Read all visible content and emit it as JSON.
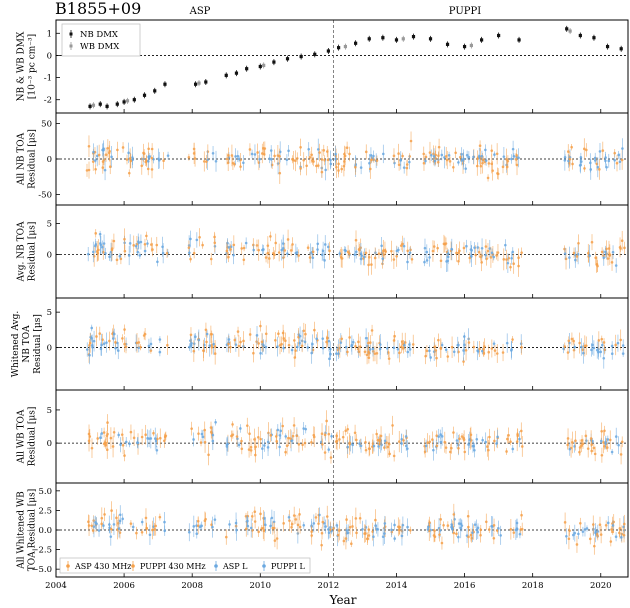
{
  "chart_data": {
    "type": "scatter",
    "title": "B1855+09",
    "receivers_top": [
      "ASP",
      "PUPPI"
    ],
    "xlabel": "Year",
    "xlim": [
      2004,
      2020.8
    ],
    "x_ticks": [
      2004,
      2006,
      2008,
      2010,
      2012,
      2014,
      2016,
      2018,
      2020
    ],
    "vline_x": 2012.15,
    "panels": [
      {
        "name": "dmx",
        "ylabel": [
          "NB & WB DMX",
          "[10⁻³ pc cm⁻³]"
        ],
        "ylim": [
          -2.6,
          1.6
        ],
        "yticks": [
          -2,
          -1,
          0,
          1
        ],
        "legend": [
          "NB DMX",
          "WB DMX"
        ],
        "series": [
          {
            "name": "NB DMX",
            "x": [
              2005.0,
              2005.3,
              2005.5,
              2005.8,
              2006.0,
              2006.3,
              2006.6,
              2006.9,
              2007.2,
              2008.1,
              2008.4,
              2009.0,
              2009.3,
              2009.6,
              2010.0,
              2010.4,
              2010.8,
              2011.2,
              2011.6,
              2012.0,
              2012.3,
              2012.8,
              2013.2,
              2013.6,
              2014.0,
              2014.5,
              2015.0,
              2015.5,
              2016.0,
              2016.5,
              2017.0,
              2017.6,
              2019.0,
              2019.4,
              2019.8,
              2020.2,
              2020.6
            ],
            "y": [
              -2.3,
              -2.2,
              -2.3,
              -2.2,
              -2.1,
              -2.0,
              -1.8,
              -1.6,
              -1.3,
              -1.3,
              -1.2,
              -0.9,
              -0.8,
              -0.6,
              -0.5,
              -0.3,
              -0.15,
              -0.05,
              0.05,
              0.2,
              0.35,
              0.55,
              0.75,
              0.8,
              0.7,
              0.85,
              0.75,
              0.5,
              0.4,
              0.7,
              0.9,
              0.7,
              1.2,
              0.9,
              0.8,
              0.4,
              0.3
            ]
          },
          {
            "name": "WB DMX",
            "x": [
              2005.1,
              2006.1,
              2008.2,
              2010.1,
              2012.5,
              2014.2,
              2016.2,
              2019.1
            ],
            "y": [
              -2.25,
              -2.05,
              -1.25,
              -0.45,
              0.4,
              0.75,
              0.45,
              1.1
            ]
          }
        ]
      },
      {
        "name": "all-nb-toa",
        "ylabel": [
          "All NB TOA",
          "Residual [μs]"
        ],
        "ylim": [
          -65,
          65
        ],
        "yticks": [
          -50,
          0,
          50
        ],
        "scatter_amplitude": 18
      },
      {
        "name": "avg-nb-toa",
        "ylabel": [
          "Avg. NB TOA",
          "Residual [μs]"
        ],
        "ylim": [
          -7,
          8
        ],
        "yticks": [
          0,
          5
        ]
      },
      {
        "name": "whitened-avg-nb-toa",
        "ylabel": [
          "Whitened Avg.",
          "NB TOA",
          "Residual [μs]"
        ],
        "ylim": [
          -6,
          7
        ],
        "yticks": [
          0,
          5
        ]
      },
      {
        "name": "all-wb-toa",
        "ylabel": [
          "All WB TOA",
          "Residual [μs]"
        ],
        "ylim": [
          -6,
          8
        ],
        "yticks": [
          0,
          5
        ]
      },
      {
        "name": "all-whitened-wb-toa",
        "ylabel": [
          "All Whitened WB",
          "TOA Residual [μs]"
        ],
        "ylim": [
          -6,
          6
        ],
        "yticks": [
          -5.0,
          -2.5,
          0.0,
          2.5,
          5.0
        ],
        "ytick_labels": [
          "−5.0",
          "−2.5",
          "0.0",
          "2.5",
          "5.0"
        ]
      }
    ],
    "legend_bottom": [
      {
        "name": "ASP 430 MHz",
        "color": "#f5a04a"
      },
      {
        "name": "PUPPI 430 MHz",
        "color": "#f5a04a"
      },
      {
        "name": "ASP L",
        "color": "#6aa8e0"
      },
      {
        "name": "PUPPI L",
        "color": "#6aa8e0"
      }
    ],
    "observing_epochs": [
      [
        2004.9,
        2007.3
      ],
      [
        2007.9,
        2008.7
      ],
      [
        2009.0,
        2012.1
      ],
      [
        2012.15,
        2014.5
      ],
      [
        2014.8,
        2017.7
      ],
      [
        2018.9,
        2020.7
      ]
    ]
  },
  "colors": {
    "orange": "#f5a04a",
    "blue": "#6aa8e0",
    "dmx": "#111111"
  }
}
